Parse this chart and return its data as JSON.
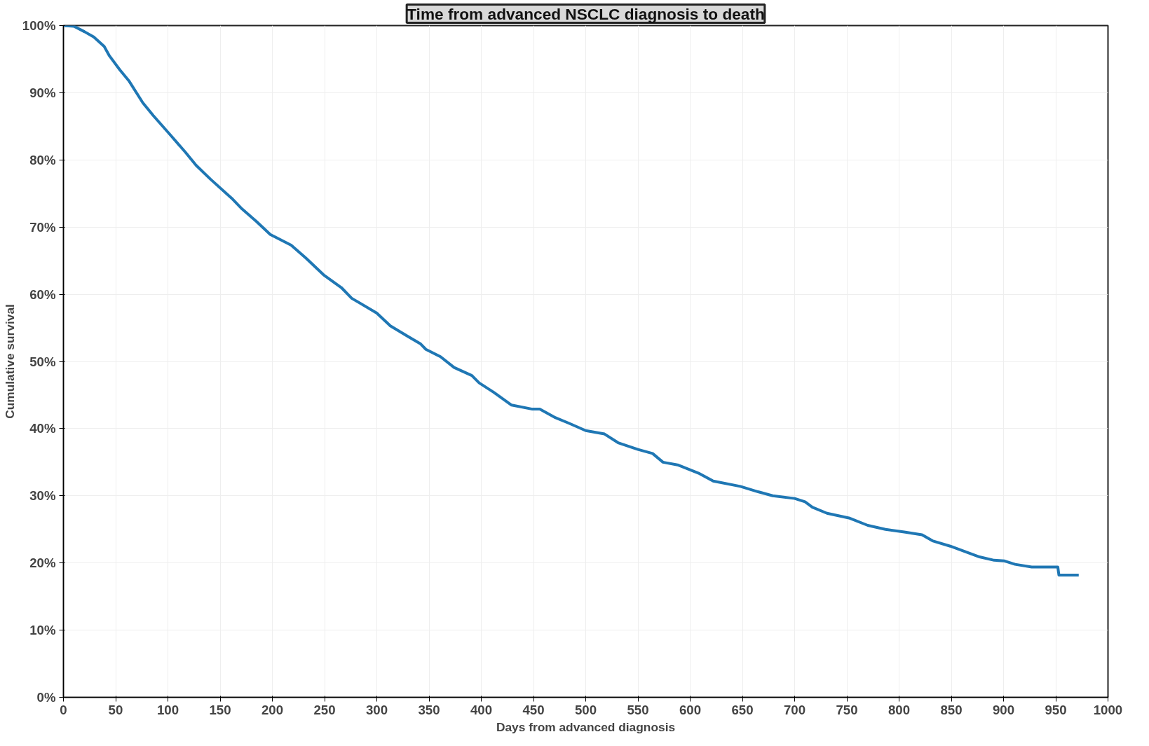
{
  "chart_data": {
    "type": "line",
    "title": "Time from advanced NSCLC diagnosis to death",
    "xlabel": "Days from advanced diagnosis",
    "ylabel": "Cumulative survival",
    "x": [
      0,
      10,
      20,
      29,
      39,
      44,
      54,
      63,
      76,
      86,
      103,
      117,
      127,
      141,
      161,
      171,
      185,
      198,
      218,
      232,
      249,
      266,
      276,
      300,
      313,
      330,
      342,
      347,
      361,
      374,
      391,
      398,
      412,
      429,
      449,
      456,
      470,
      484,
      500,
      518,
      531,
      550,
      564,
      574,
      588,
      609,
      622,
      648,
      665,
      679,
      700,
      710,
      717,
      731,
      752,
      770,
      787,
      805,
      822,
      832,
      849,
      863,
      877,
      891,
      901,
      911,
      927,
      952,
      953,
      972
    ],
    "series": [
      {
        "color": "#1f77b4",
        "values": [
          100,
          99.9,
          99.1,
          98.3,
          96.9,
          95.5,
          93.4,
          91.7,
          88.5,
          86.6,
          83.6,
          81.1,
          79.2,
          77.1,
          74.3,
          72.7,
          70.8,
          68.9,
          67.3,
          65.4,
          62.9,
          61.0,
          59.4,
          57.2,
          55.3,
          53.7,
          52.6,
          51.8,
          50.7,
          49.1,
          47.9,
          46.8,
          45.4,
          43.5,
          42.9,
          42.9,
          41.7,
          40.8,
          39.7,
          39.2,
          37.9,
          36.9,
          36.3,
          35.0,
          34.6,
          33.3,
          32.2,
          31.4,
          30.6,
          30.0,
          29.6,
          29.1,
          28.3,
          27.4,
          26.7,
          25.6,
          25.0,
          24.6,
          24.2,
          23.3,
          22.5,
          21.7,
          20.9,
          20.4,
          20.3,
          19.8,
          19.4,
          19.4,
          18.2,
          18.2
        ]
      }
    ],
    "xlim": [
      0,
      1000
    ],
    "xticks": [
      0,
      50,
      100,
      150,
      200,
      250,
      300,
      350,
      400,
      450,
      500,
      550,
      600,
      650,
      700,
      750,
      800,
      850,
      900,
      950,
      1000
    ],
    "ylim": [
      0,
      100
    ],
    "yticks": [
      {
        "value": 0,
        "label": "0%"
      },
      {
        "value": 10,
        "label": "10%"
      },
      {
        "value": 20,
        "label": "20%"
      },
      {
        "value": 30,
        "label": "30%"
      },
      {
        "value": 40,
        "label": "40%"
      },
      {
        "value": 50,
        "label": "50%"
      },
      {
        "value": 60,
        "label": "60%"
      },
      {
        "value": 70,
        "label": "70%"
      },
      {
        "value": 80,
        "label": "80%"
      },
      {
        "value": 90,
        "label": "90%"
      },
      {
        "value": 100,
        "label": "100%"
      }
    ],
    "grid": true,
    "line_style": "solid"
  }
}
